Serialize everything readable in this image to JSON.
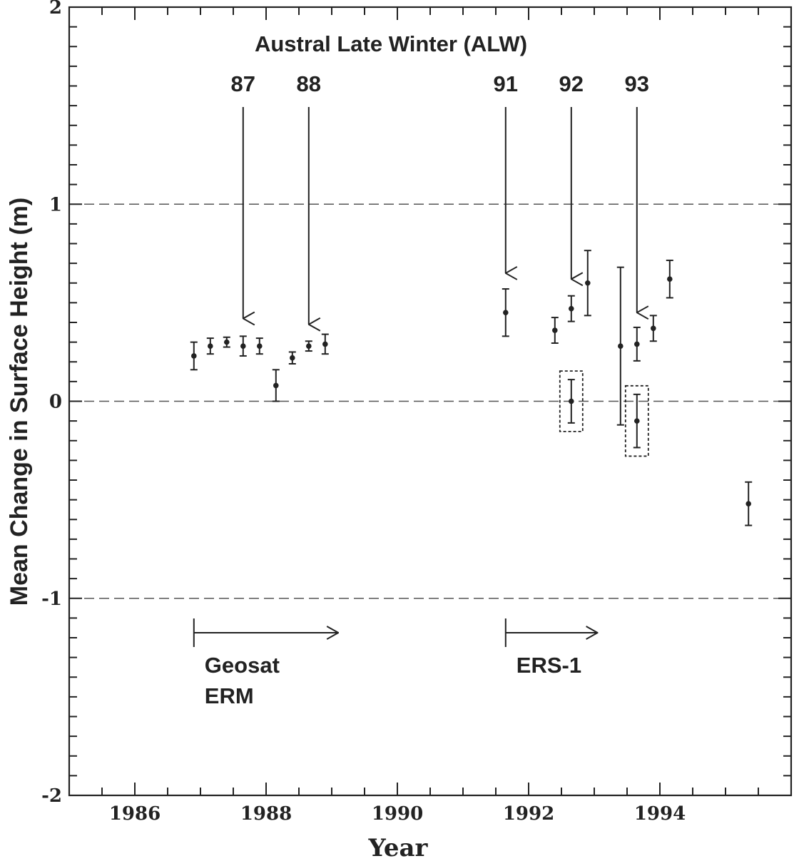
{
  "chart_data": {
    "type": "scatter",
    "title": "Austral Late Winter (ALW)",
    "xlabel": "Year",
    "ylabel": "Mean Change in Surface Height (m)",
    "xlim": [
      1985.0,
      1996.0
    ],
    "ylim": [
      -2,
      2
    ],
    "x_ticks": [
      1986,
      1988,
      1990,
      1992,
      1994
    ],
    "x_tick_labels": [
      "1986",
      "1988",
      "1990",
      "1992",
      "1994"
    ],
    "y_ticks": [
      2,
      1,
      0,
      -1,
      -2
    ],
    "y_tick_labels": [
      "2",
      "1",
      "0",
      "-1",
      "-2"
    ],
    "reference_lines": [
      1,
      0,
      -1
    ],
    "series": [
      {
        "points": [
          {
            "x": 1986.9,
            "y": 0.23,
            "err": 0.07
          },
          {
            "x": 1987.15,
            "y": 0.28,
            "err": 0.04
          },
          {
            "x": 1987.4,
            "y": 0.3,
            "err": 0.025
          },
          {
            "x": 1987.65,
            "y": 0.28,
            "err": 0.05
          },
          {
            "x": 1987.9,
            "y": 0.28,
            "err": 0.04
          },
          {
            "x": 1988.15,
            "y": 0.08,
            "err": 0.08
          },
          {
            "x": 1988.4,
            "y": 0.22,
            "err": 0.03
          },
          {
            "x": 1988.65,
            "y": 0.28,
            "err": 0.025
          },
          {
            "x": 1988.9,
            "y": 0.29,
            "err": 0.05
          },
          {
            "x": 1991.65,
            "y": 0.45,
            "err": 0.12
          },
          {
            "x": 1992.4,
            "y": 0.36,
            "err": 0.065
          },
          {
            "x": 1992.65,
            "y": 0.47,
            "err": 0.065
          },
          {
            "x": 1992.9,
            "y": 0.6,
            "err": 0.165
          },
          {
            "x": 1993.4,
            "y": 0.28,
            "err": 0.4
          },
          {
            "x": 1993.65,
            "y": 0.29,
            "err": 0.085
          },
          {
            "x": 1993.9,
            "y": 0.37,
            "err": 0.065
          },
          {
            "x": 1994.15,
            "y": 0.62,
            "err": 0.095
          },
          {
            "x": 1995.35,
            "y": -0.52,
            "err": 0.11
          }
        ]
      },
      {
        "boxed": true,
        "points": [
          {
            "x": 1992.65,
            "y": 0.0,
            "err": 0.11
          },
          {
            "x": 1993.65,
            "y": -0.1,
            "err": 0.135
          }
        ]
      }
    ],
    "annotations": {
      "year_arrows": [
        {
          "label": "87",
          "x": 1987.65,
          "y_tip": 0.42
        },
        {
          "label": "88",
          "x": 1988.65,
          "y_tip": 0.39
        },
        {
          "label": "91",
          "x": 1991.65,
          "y_tip": 0.65
        },
        {
          "label": "92",
          "x": 1992.65,
          "y_tip": 0.62
        },
        {
          "label": "93",
          "x": 1993.65,
          "y_tip": 0.45
        }
      ],
      "missions": [
        {
          "lines": [
            "Geosat",
            "ERM"
          ],
          "x_start": 1986.9,
          "x_end": 1989.1
        },
        {
          "lines": [
            "ERS-1"
          ],
          "x_start": 1991.65,
          "x_end": 1993.05
        }
      ]
    }
  }
}
